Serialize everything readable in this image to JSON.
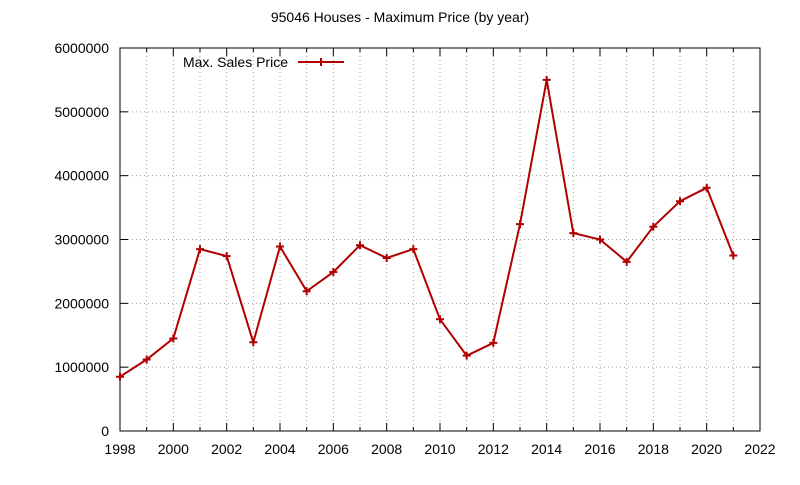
{
  "chart_data": {
    "type": "line",
    "title": "95046 Houses - Maximum Price (by year)",
    "xlabel": "",
    "ylabel": "",
    "xlim": [
      1998,
      2022
    ],
    "ylim": [
      0,
      6000000
    ],
    "x_ticks": [
      1998,
      2000,
      2002,
      2004,
      2006,
      2008,
      2010,
      2012,
      2014,
      2016,
      2018,
      2020,
      2022
    ],
    "y_ticks": [
      0,
      1000000,
      2000000,
      3000000,
      4000000,
      5000000,
      6000000
    ],
    "x_tick_labels": [
      "1998",
      "2000",
      "2002",
      "2004",
      "2006",
      "2008",
      "2010",
      "2012",
      "2014",
      "2016",
      "2018",
      "2020",
      "2022"
    ],
    "y_tick_labels": [
      "0",
      "1000000",
      "2000000",
      "3000000",
      "4000000",
      "5000000",
      "6000000"
    ],
    "grid": true,
    "legend_position": "top-left",
    "series": [
      {
        "name": "Max. Sales Price",
        "color": "#b00000",
        "marker": "plus",
        "x": [
          1998,
          1999,
          2000,
          2001,
          2002,
          2003,
          2004,
          2005,
          2006,
          2007,
          2008,
          2009,
          2010,
          2011,
          2012,
          2013,
          2014,
          2015,
          2016,
          2017,
          2018,
          2019,
          2020,
          2021
        ],
        "y": [
          850000,
          1120000,
          1450000,
          2850000,
          2740000,
          1390000,
          2890000,
          2190000,
          2490000,
          2910000,
          2710000,
          2850000,
          1750000,
          1180000,
          1380000,
          3240000,
          5500000,
          3100000,
          3000000,
          2650000,
          3200000,
          3600000,
          3810000,
          2750000
        ]
      }
    ]
  }
}
